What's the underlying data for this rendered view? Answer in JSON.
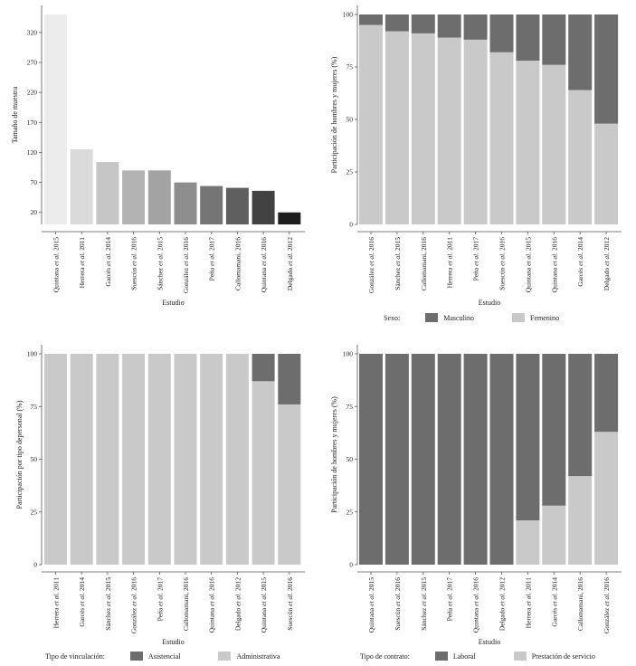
{
  "chart_data": [
    {
      "type": "bar",
      "categories": [
        "Quintana et al. 2015",
        "Herrera et al. 2011",
        "Garcés et al. 2014",
        "Suescún et al. 2016",
        "Sánchez et al. 2015",
        "González et al. 2016",
        "Peña et al. 2017",
        "Callomamani, 2016",
        "Quintana et al. 2016",
        "Delgado et al. 2012"
      ],
      "values": [
        350,
        125,
        104,
        90,
        90,
        70,
        64,
        61,
        56,
        20
      ],
      "colors": [
        "#ececec",
        "#dadada",
        "#c6c6c6",
        "#b3b3b3",
        "#a3a3a3",
        "#8d8d8d",
        "#757575",
        "#5f5f5f",
        "#424242",
        "#1e1e1e"
      ],
      "yticks": [
        20,
        70,
        120,
        170,
        220,
        270,
        320
      ],
      "ylim": [
        0,
        350
      ],
      "xlabel": "Estudio",
      "ylabel": "Tamaño de muestra"
    },
    {
      "type": "bar",
      "stacked": true,
      "categories": [
        "González et al. 2016",
        "Sánchez et al. 2015",
        "Callomamani, 2016",
        "Herrera et al. 2011",
        "Peña et al. 2017",
        "Suescún et al. 2016",
        "Quintana et al. 2015",
        "Quintana et al. 2016",
        "Garcés et al. 2014",
        "Delgado et al. 2012"
      ],
      "series": [
        {
          "name": "Femenino",
          "color": "#c9c9c9",
          "values": [
            95,
            92,
            91,
            89,
            88,
            82,
            78,
            76,
            64,
            48
          ]
        },
        {
          "name": "Masculino",
          "color": "#6d6d6d",
          "values": [
            5,
            8,
            9,
            11,
            12,
            18,
            22,
            24,
            36,
            52
          ]
        }
      ],
      "yticks": [
        0,
        25,
        50,
        75,
        100
      ],
      "ylim": [
        0,
        100
      ],
      "xlabel": "Estudio",
      "ylabel": "Participación de hombres y mujeres (%)",
      "legend_title": "Sexo:",
      "legend": [
        "Masculino",
        "Femenino"
      ]
    },
    {
      "type": "bar",
      "stacked": true,
      "categories": [
        "Herrera et al. 2011",
        "Garcés et al. 2014",
        "Sánchez et al. 2015",
        "González et al. 2016",
        "Peña et al. 2017",
        "Callomamani, 2016",
        "Quintana et al. 2016",
        "Delgado et al. 2012",
        "Quintana et al. 2015",
        "Suescún et al. 2016"
      ],
      "series": [
        {
          "name": "Administrativa",
          "color": "#c9c9c9",
          "values": [
            100,
            100,
            100,
            100,
            100,
            100,
            100,
            100,
            87,
            76
          ]
        },
        {
          "name": "Asistencial",
          "color": "#6d6d6d",
          "values": [
            0,
            0,
            0,
            0,
            0,
            0,
            0,
            0,
            13,
            24
          ]
        }
      ],
      "yticks": [
        0,
        25,
        50,
        75,
        100
      ],
      "ylim": [
        0,
        100
      ],
      "xlabel": "Estudio",
      "ylabel": "Participación por tipo depersonal (%)",
      "legend_title": "Tipo de vinculación:",
      "legend": [
        "Asistencial",
        "Administrativa"
      ]
    },
    {
      "type": "bar",
      "stacked": true,
      "categories": [
        "Quintana et al. 2015",
        "Suescún et al. 2016",
        "Sánchez et al. 2015",
        "Peña et al. 2017",
        "Quintana et al. 2016",
        "Delgado et al. 2012",
        "Herrera et al. 2011",
        "Garcés et al. 2014",
        "Callomamani, 2016",
        "González et al. 2016"
      ],
      "series": [
        {
          "name": "Prestación de servicio",
          "color": "#c9c9c9",
          "values": [
            0,
            0,
            0,
            0,
            0,
            0,
            21,
            28,
            42,
            63
          ]
        },
        {
          "name": "Laboral",
          "color": "#6d6d6d",
          "values": [
            100,
            100,
            100,
            100,
            100,
            100,
            79,
            72,
            58,
            37
          ]
        }
      ],
      "yticks": [
        0,
        25,
        50,
        75,
        100
      ],
      "ylim": [
        0,
        100
      ],
      "xlabel": "Estudio",
      "ylabel": "Participación de hombres y mujeres (%)",
      "legend_title": "Tipo de contrato:",
      "legend": [
        "Laboral",
        "Prestación de servicio"
      ]
    }
  ]
}
